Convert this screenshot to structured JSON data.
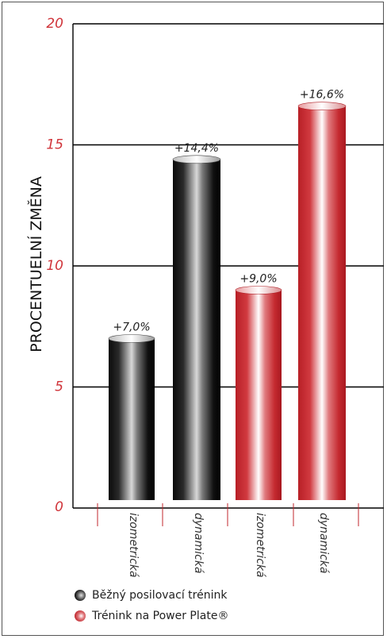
{
  "chart_data": {
    "type": "bar",
    "ylabel": "PROCENTUELNÍ ZMĚNA",
    "ylim": [
      0,
      20
    ],
    "yticks": [
      0,
      5,
      10,
      15,
      20
    ],
    "grid": true,
    "categories": [
      "izometrická",
      "dynamická",
      "izometrická",
      "dynamická"
    ],
    "series": [
      {
        "name": "Běžný posilovací trénink",
        "color": "#000000",
        "values": [
          7.0,
          14.4,
          null,
          null
        ],
        "labels": [
          "+7,0%",
          "+14,4%",
          null,
          null
        ]
      },
      {
        "name": "Trénink na Power Plate®",
        "color": "#c0272d",
        "values": [
          null,
          null,
          9.0,
          16.6
        ],
        "labels": [
          null,
          null,
          "+9,0%",
          "+16,6%"
        ]
      }
    ],
    "legend_position": "bottom-left"
  },
  "colors": {
    "tick_text": "#d0343a",
    "divider": "#c0272d",
    "black_bar": "#000000",
    "red_bar": "#c0272d"
  }
}
